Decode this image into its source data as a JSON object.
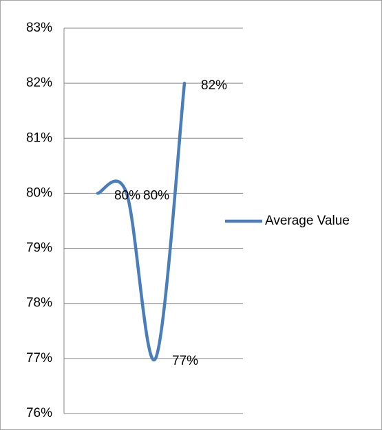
{
  "chart_data": {
    "type": "line",
    "categories": [
      null,
      null,
      null,
      null
    ],
    "series": [
      {
        "name": "Average Value",
        "color": "#4a7ebb",
        "values": [
          80,
          80,
          77,
          82
        ],
        "value_labels": [
          "80%",
          "80%",
          "77%",
          "82%"
        ]
      }
    ],
    "ylim": [
      76,
      83
    ],
    "yticks": [
      {
        "value": 76,
        "label": "76%"
      },
      {
        "value": 77,
        "label": "77%"
      },
      {
        "value": 78,
        "label": "78%"
      },
      {
        "value": 79,
        "label": "79%"
      },
      {
        "value": 80,
        "label": "80%"
      },
      {
        "value": 81,
        "label": "81%"
      },
      {
        "value": 82,
        "label": "82%"
      },
      {
        "value": 83,
        "label": "83%"
      }
    ],
    "grid": true,
    "smooth": true,
    "legend": "right"
  }
}
